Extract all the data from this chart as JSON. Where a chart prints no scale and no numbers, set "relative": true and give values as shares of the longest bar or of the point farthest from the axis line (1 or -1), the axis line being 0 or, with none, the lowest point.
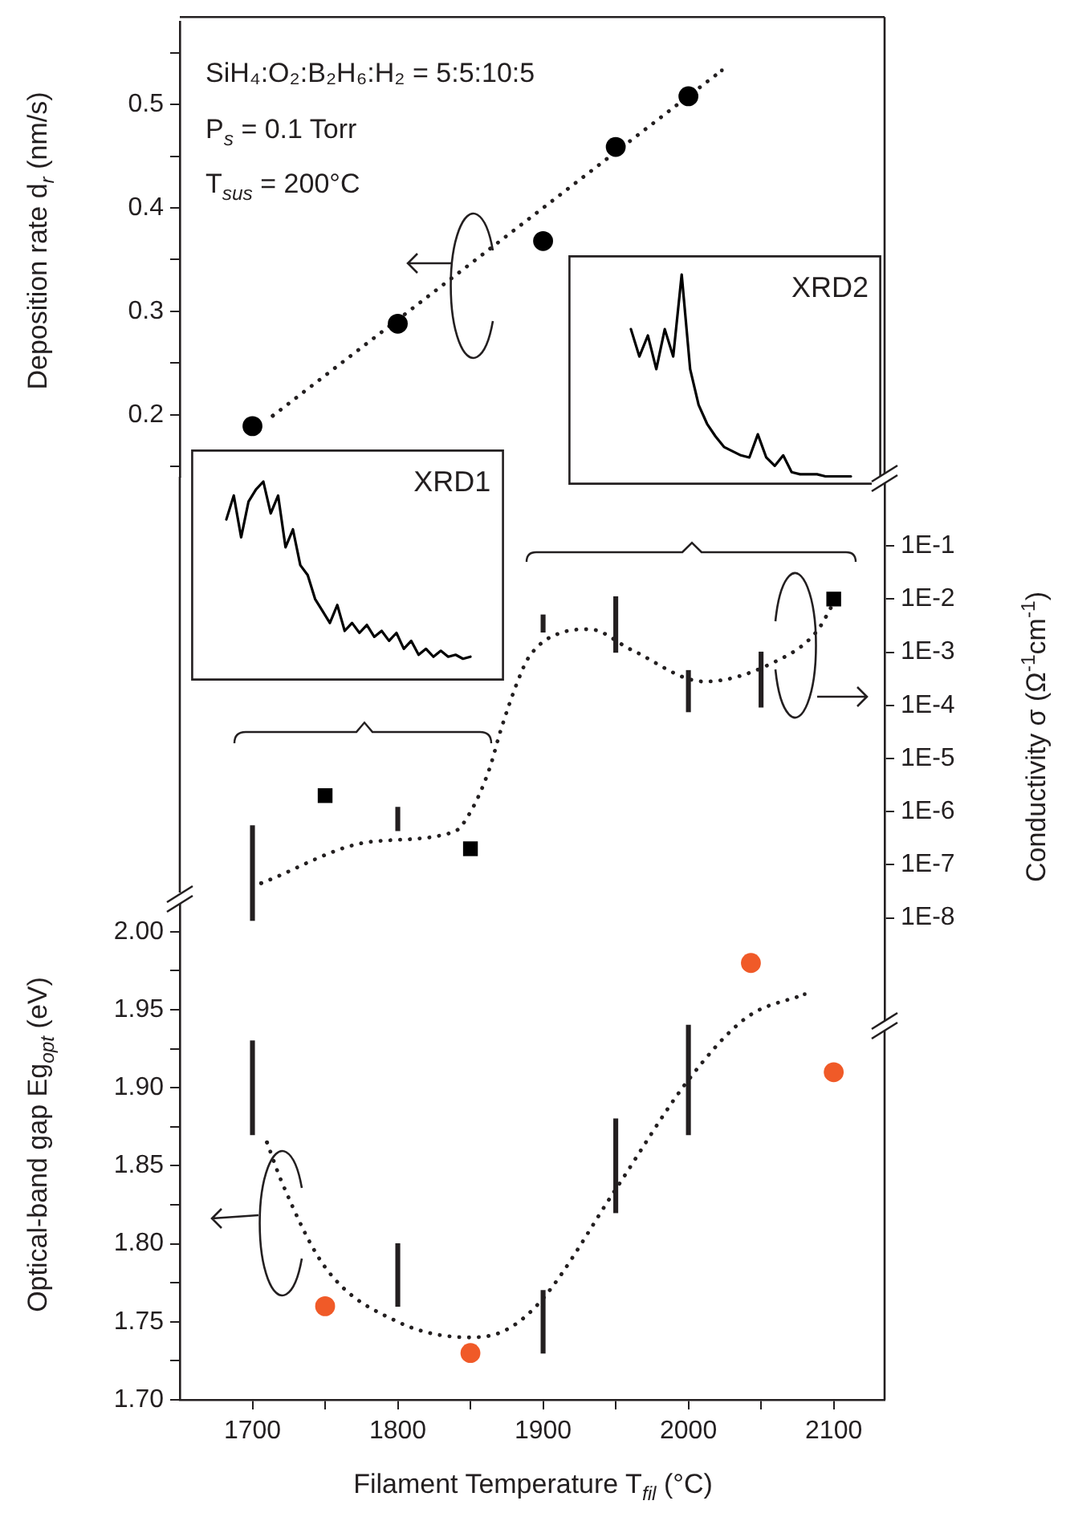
{
  "chart_data": [
    {
      "type": "scatter",
      "ylabel": "Deposition rate d$_{r}$ (nm/s)",
      "annotations": [
        "SiH₄:O₂:B₂H₆:H₂ = 5:5:10:5",
        "P$_{s}$ = 0.1 Torr",
        "T$_{sus}$ = 200°C"
      ],
      "xlim": [
        1650,
        2135
      ],
      "ylim": [
        0.14,
        0.58
      ],
      "yticks": [
        {
          "value": 0.15,
          "label": null
        },
        0.2,
        {
          "value": 0.25,
          "label": null
        },
        0.3,
        {
          "value": 0.35,
          "label": null
        },
        0.4,
        {
          "value": 0.45,
          "label": null
        },
        0.5,
        {
          "value": 0.55,
          "label": null
        }
      ],
      "tick_labels": "y",
      "marker": "circle",
      "series": [
        {
          "color": "#000000",
          "x": [
            1700,
            1800,
            1900,
            1950,
            2000
          ],
          "values": [
            0.189,
            0.288,
            0.368,
            0.459,
            0.508
          ]
        },
        {
          "type": "line",
          "marker": "none",
          "line_style": "dotted",
          "color": "#231f20",
          "x": [
            1714,
            2023
          ],
          "values": [
            0.199,
            0.533
          ]
        }
      ]
    },
    {
      "type": "scatter",
      "y2label": "Conductivity σ (Ω$^{-1}$cm$^{-1}$)",
      "xlim": [
        1650,
        2135
      ],
      "y2lim": [
        1e-10,
        2
      ],
      "log": "y2",
      "y2ticks": [
        {
          "value": 0.1,
          "label": "1E-1"
        },
        {
          "value": 0.01,
          "label": "1E-2"
        },
        {
          "value": 0.001,
          "label": "1E-3"
        },
        {
          "value": 0.0001,
          "label": "1E-4"
        },
        {
          "value": 1e-05,
          "label": "1E-5"
        },
        {
          "value": 1e-06,
          "label": "1E-6"
        },
        {
          "value": 1e-07,
          "label": "1E-7"
        },
        {
          "value": 1e-08,
          "label": "1E-8"
        }
      ],
      "tick_labels": "y2",
      "series": [
        {
          "axis": "y2",
          "marker": "square",
          "color": "#000000",
          "x": [
            1750,
            1850,
            2100
          ],
          "values": [
            2e-06,
            2e-07,
            0.01
          ]
        },
        {
          "type": "bar",
          "axis": "y2",
          "color": "#231f20",
          "x": [
            1700,
            1800,
            1900,
            1950,
            2000,
            2050
          ],
          "base": [
            9e-09,
            4.4e-07,
            0.0024,
            0.001,
            7.6e-05,
            9.3e-05
          ],
          "values": [
            5.31e-07,
            7.6e-07,
            0.0026,
            0.01,
            0.000374,
            0.000907
          ]
        },
        {
          "type": "line",
          "axis": "y2",
          "marker": "none",
          "line_style": "dotted",
          "color": "#231f20",
          "x": [
            1706,
            1781,
            1839,
            1851,
            1863,
            1871,
            1882,
            1890,
            1914,
            1932,
            1961,
            2011,
            2058,
            2088,
            2100
          ],
          "values": [
            4.5e-08,
            2.7e-07,
            4.2e-07,
            1.1e-06,
            6.3e-06,
            3.5e-05,
            0.00026,
            0.00079,
            0.0024,
            0.0027,
            0.0011,
            0.00028,
            0.00063,
            0.0024,
            0.0085
          ]
        }
      ]
    },
    {
      "type": "scatter",
      "xlabel": "Filament Temperature T$_{fil}$ (°C)",
      "ylabel": "Optical-band gap Eg$_{opt}$ (eV)",
      "xlim": [
        1650,
        2135
      ],
      "xticks": [
        1700,
        {
          "value": 1750,
          "label": null
        },
        1800,
        {
          "value": 1850,
          "label": null
        },
        1900,
        {
          "value": 1950,
          "label": null
        },
        2000,
        {
          "value": 2050,
          "label": null
        },
        2100
      ],
      "ylim": [
        1.7,
        2.02
      ],
      "yticks": [
        {
          "value": 1.7,
          "label": "1.70"
        },
        {
          "value": 1.725,
          "label": null
        },
        1.75,
        {
          "value": 1.775,
          "label": null
        },
        {
          "value": 1.8,
          "label": "1.80"
        },
        {
          "value": 1.825,
          "label": null
        },
        1.85,
        {
          "value": 1.875,
          "label": null
        },
        {
          "value": 1.9,
          "label": "1.90"
        },
        {
          "value": 1.925,
          "label": null
        },
        1.95,
        {
          "value": 1.975,
          "label": null
        },
        {
          "value": 2,
          "label": "2.00"
        }
      ],
      "marker": "circle",
      "series": [
        {
          "color": "#f05a28",
          "x": [
            1750,
            1850,
            2043,
            2100
          ],
          "values": [
            1.76,
            1.73,
            1.98,
            1.91
          ]
        },
        {
          "type": "bar",
          "color": "#231f20",
          "x": [
            1700,
            1800,
            1900,
            1950,
            2000
          ],
          "base": [
            1.87,
            1.76,
            1.73,
            1.82,
            1.87
          ],
          "values": [
            0.06,
            0.04,
            0.04,
            0.06,
            0.07
          ]
        },
        {
          "type": "line",
          "marker": "none",
          "line_style": "dotted",
          "color": "#231f20",
          "x": [
            1710,
            1720,
            1750,
            1800,
            1850,
            1875,
            1900,
            1950,
            2000,
            2040,
            2080
          ],
          "values": [
            1.865,
            1.84,
            1.785,
            1.75,
            1.74,
            1.745,
            1.765,
            1.835,
            1.905,
            1.945,
            1.96
          ]
        }
      ]
    },
    {
      "type": "line",
      "title": "XRD1",
      "relative": true,
      "tick_labels": false,
      "categories": [
        null,
        null,
        null,
        null,
        null,
        null,
        null,
        null,
        null,
        null,
        null,
        null,
        null,
        null,
        null,
        null,
        null,
        null,
        null,
        null,
        null,
        null,
        null,
        null,
        null,
        null,
        null,
        null,
        null,
        null,
        null,
        null,
        null,
        null
      ],
      "series": [
        {
          "color": "#000000",
          "values": [
            0.81,
            0.93,
            0.72,
            0.9,
            0.96,
            1,
            0.84,
            0.93,
            0.67,
            0.76,
            0.58,
            0.53,
            0.41,
            0.35,
            0.29,
            0.38,
            0.25,
            0.29,
            0.24,
            0.28,
            0.22,
            0.25,
            0.2,
            0.24,
            0.16,
            0.2,
            0.13,
            0.16,
            0.12,
            0.15,
            0.12,
            0.13,
            0.11,
            0.12
          ]
        }
      ]
    },
    {
      "type": "line",
      "title": "XRD2",
      "relative": true,
      "tick_labels": false,
      "categories": [
        null,
        null,
        null,
        null,
        null,
        null,
        null,
        null,
        null,
        null,
        null,
        null,
        null,
        null,
        null,
        null,
        null,
        null,
        null,
        null,
        null,
        null,
        null,
        null,
        null,
        null,
        null
      ],
      "series": [
        {
          "color": "#000000",
          "values": [
            0.74,
            0.61,
            0.71,
            0.55,
            0.74,
            0.61,
            1,
            0.55,
            0.38,
            0.29,
            0.23,
            0.18,
            0.16,
            0.14,
            0.13,
            0.24,
            0.13,
            0.09,
            0.14,
            0.06,
            0.05,
            0.05,
            0.05,
            0.04,
            0.04,
            0.04,
            0.04
          ]
        }
      ]
    }
  ]
}
